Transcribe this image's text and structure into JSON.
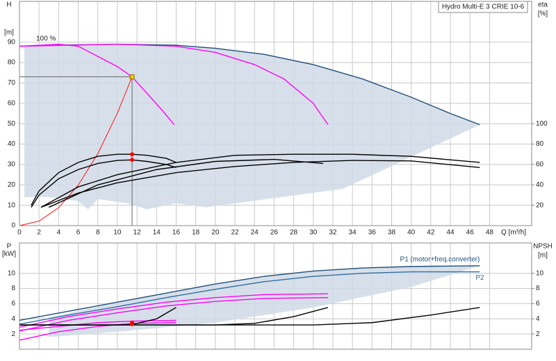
{
  "chart_data": [
    {
      "type": "line",
      "title": "Hydro Multi-E 3 CRIE 10-6",
      "y_label": "H",
      "y_unit": "[m]",
      "y2_label": "eta",
      "y2_unit": "[%]",
      "x_label": "Q [m³/h]",
      "annotations": [
        "100 %"
      ],
      "xlim": [
        0,
        52.3
      ],
      "xticks": [
        0,
        2,
        4,
        6,
        8,
        10,
        12,
        14,
        16,
        18,
        20,
        22,
        24,
        26,
        28,
        30,
        32,
        34,
        36,
        38,
        40,
        42,
        44,
        46,
        48
      ],
      "ylim": [
        0,
        110
      ],
      "yticks": [
        0,
        10,
        20,
        30,
        40,
        50,
        60,
        70,
        80,
        90
      ],
      "y2lim": [
        0,
        220
      ],
      "y2ticks": [
        20,
        40,
        60,
        80,
        100
      ],
      "grid": true,
      "area": {
        "color": "#d0dbe6",
        "x": [
          0.5,
          1.3,
          6,
          10,
          16,
          20,
          25,
          30,
          35,
          40,
          44,
          47,
          33,
          19,
          16,
          13,
          11,
          8,
          7,
          6,
          3,
          0.5
        ],
        "values": [
          88,
          88.5,
          89,
          89,
          88.5,
          87,
          84,
          79,
          72,
          63,
          55,
          49.5,
          18,
          9,
          11,
          8,
          11,
          13,
          8,
          12,
          14,
          14
        ]
      },
      "series": [
        {
          "color": "#1f4e79",
          "axis": "y",
          "x": [
            0,
            5,
            10,
            16,
            20,
            25,
            30,
            35,
            40,
            44,
            47
          ],
          "values": [
            88,
            88.6,
            89,
            88.5,
            87,
            84,
            79,
            72,
            63,
            55,
            49.5
          ]
        },
        {
          "color": "#ff00ff",
          "axis": "y",
          "x": [
            0,
            4,
            6,
            8,
            10,
            11.5,
            13,
            14.5,
            15.8
          ],
          "values": [
            88,
            89,
            88,
            83,
            78,
            73,
            65,
            57,
            49.5
          ]
        },
        {
          "color": "#ff00ff",
          "axis": "y",
          "x": [
            0,
            10,
            16,
            20,
            24,
            27,
            30,
            31.5
          ],
          "values": [
            88,
            89,
            88,
            85,
            79,
            72,
            60,
            49.5
          ]
        },
        {
          "color": "#ff0000",
          "axis": "y",
          "x": [
            0,
            2,
            4,
            6,
            8,
            10,
            11.5
          ],
          "values": [
            0,
            2.2,
            8.8,
            19.9,
            35.3,
            55.2,
            73
          ]
        },
        {
          "color": "#000000",
          "axis": "y2",
          "x": [
            1.2,
            2,
            4,
            6,
            8,
            10,
            11.5,
            13,
            15,
            16
          ],
          "values": [
            20,
            34,
            52,
            62,
            68,
            70,
            70,
            69,
            66,
            62
          ]
        },
        {
          "color": "#000000",
          "axis": "y2",
          "x": [
            1.2,
            2,
            4,
            6,
            8,
            10,
            11.5,
            13,
            15,
            16
          ],
          "values": [
            18,
            30,
            46,
            55,
            61,
            64,
            64.5,
            63,
            60,
            57
          ]
        },
        {
          "color": "#000000",
          "axis": "y2",
          "x": [
            3,
            8,
            14,
            20,
            26,
            31
          ],
          "values": [
            18,
            40,
            55,
            63,
            65,
            61
          ]
        },
        {
          "color": "#000000",
          "axis": "y2",
          "x": [
            2.2,
            6,
            10,
            16,
            22,
            28,
            34,
            40,
            47
          ],
          "values": [
            18,
            38,
            50,
            62,
            69,
            70,
            70,
            68,
            62
          ]
        },
        {
          "color": "#000000",
          "axis": "y2",
          "x": [
            2.2,
            6,
            10,
            16,
            22,
            28,
            34,
            40,
            47
          ],
          "values": [
            18,
            32,
            42,
            52,
            58,
            62,
            64,
            63.5,
            57
          ]
        }
      ],
      "operating_point": {
        "x": 11.5,
        "y": 73,
        "color": "#f5c400"
      },
      "markers": {
        "color": "#ff0000",
        "axis": "y2",
        "x": [
          11.5,
          11.5
        ],
        "values": [
          70,
          64.5
        ]
      }
    },
    {
      "type": "line",
      "y_label": "P",
      "y_unit": "[kW]",
      "y2_label": "NPSH",
      "y2_unit": "[m]",
      "xlim": [
        0,
        52.3
      ],
      "ylim": [
        0,
        14
      ],
      "yticks": [
        2,
        4,
        6,
        8,
        10
      ],
      "y2lim": [
        0,
        14
      ],
      "y2ticks": [
        2,
        4,
        6,
        8,
        10
      ],
      "grid": true,
      "area": {
        "color": "#d0dbe6",
        "x": [
          3,
          10,
          15,
          20,
          25,
          30,
          35,
          40,
          47,
          40,
          30,
          20,
          10,
          5,
          3
        ],
        "values": [
          4.2,
          6.2,
          7.4,
          8.6,
          9.6,
          10.3,
          10.7,
          10.9,
          11,
          8.2,
          5.5,
          3.5,
          2.3,
          1.8,
          1.6
        ]
      },
      "series": [
        {
          "name": "P1 (motor+freq.converter)",
          "color": "#1f4e79",
          "axis": "y",
          "x": [
            0,
            5,
            10,
            15,
            20,
            25,
            30,
            35,
            40,
            47
          ],
          "values": [
            3.8,
            5,
            6.2,
            7.4,
            8.6,
            9.6,
            10.3,
            10.7,
            10.9,
            11
          ]
        },
        {
          "name": "P2",
          "color": "#2e6da4",
          "axis": "y",
          "x": [
            0,
            5,
            10,
            15,
            20,
            25,
            30,
            35,
            40,
            47
          ],
          "values": [
            3.3,
            4.5,
            5.6,
            6.8,
            7.9,
            8.9,
            9.6,
            10,
            10.2,
            10.2
          ]
        },
        {
          "color": "#ff00ff",
          "axis": "y",
          "x": [
            0,
            4,
            8,
            11.5,
            16
          ],
          "values": [
            2.5,
            3,
            3.5,
            3.7,
            3.8
          ]
        },
        {
          "color": "#ff00ff",
          "axis": "y",
          "x": [
            0,
            4,
            8,
            11.5,
            16
          ],
          "values": [
            1.2,
            2.3,
            3,
            3.4,
            3.5
          ]
        },
        {
          "color": "#ff00ff",
          "axis": "y",
          "x": [
            0,
            5,
            10,
            15,
            20,
            25,
            31.5
          ],
          "values": [
            2.9,
            4.3,
            5.3,
            6.2,
            6.8,
            7.2,
            7.3
          ]
        },
        {
          "color": "#ff00ff",
          "axis": "y",
          "x": [
            0,
            5,
            10,
            15,
            20,
            25,
            31.5
          ],
          "values": [
            2.4,
            3.8,
            4.8,
            5.7,
            6.3,
            6.7,
            6.8
          ]
        },
        {
          "color": "#000000",
          "axis": "y2",
          "x": [
            0,
            10,
            11.5,
            14,
            16
          ],
          "values": [
            3.2,
            3.2,
            3.25,
            4,
            5.5
          ]
        },
        {
          "color": "#000000",
          "axis": "y2",
          "x": [
            0,
            20,
            24,
            28,
            31.5
          ],
          "values": [
            3.2,
            3.2,
            3.4,
            4.3,
            5.5
          ]
        },
        {
          "color": "#000000",
          "axis": "y2",
          "x": [
            0,
            30,
            36,
            42,
            47
          ],
          "values": [
            3.2,
            3.2,
            3.5,
            4.5,
            5.5
          ]
        }
      ],
      "markers": {
        "color": "#ff0000",
        "axis": "y",
        "x": [
          11.5,
          11.5
        ],
        "values": [
          3.5,
          3.3
        ]
      }
    }
  ]
}
